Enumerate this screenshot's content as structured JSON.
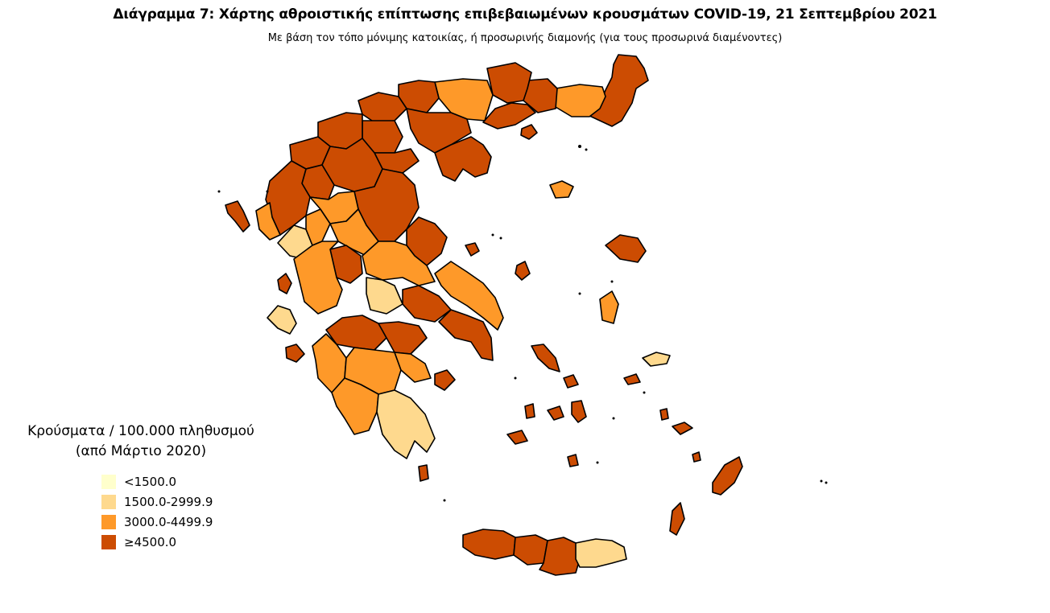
{
  "title": "Διάγραμμα 7: Χάρτης αθροιστικής επίπτωσης επιβεβαιωμένων κρουσμάτων COVID-19, 21 Σεπτεμβρίου 2021",
  "subtitle": "Με βάση τον τόπο μόνιμης κατοικίας, ή προσωρινής διαμονής (για τους προσωρινά διαμένοντες)",
  "legend": {
    "title_line1": "Κρούσματα / 100.000 πληθυσμού",
    "title_line2": "(από Μάρτιο 2020)",
    "items": [
      {
        "label": "<1500.0",
        "color": "#ffffcc"
      },
      {
        "label": "1500.0-2999.9",
        "color": "#fed98e"
      },
      {
        "label": "3000.0-4499.9",
        "color": "#fe9929"
      },
      {
        "label": "≥4500.0",
        "color": "#cc4c02"
      }
    ]
  },
  "colors": {
    "border": "#000000",
    "background": "#ffffff"
  }
}
